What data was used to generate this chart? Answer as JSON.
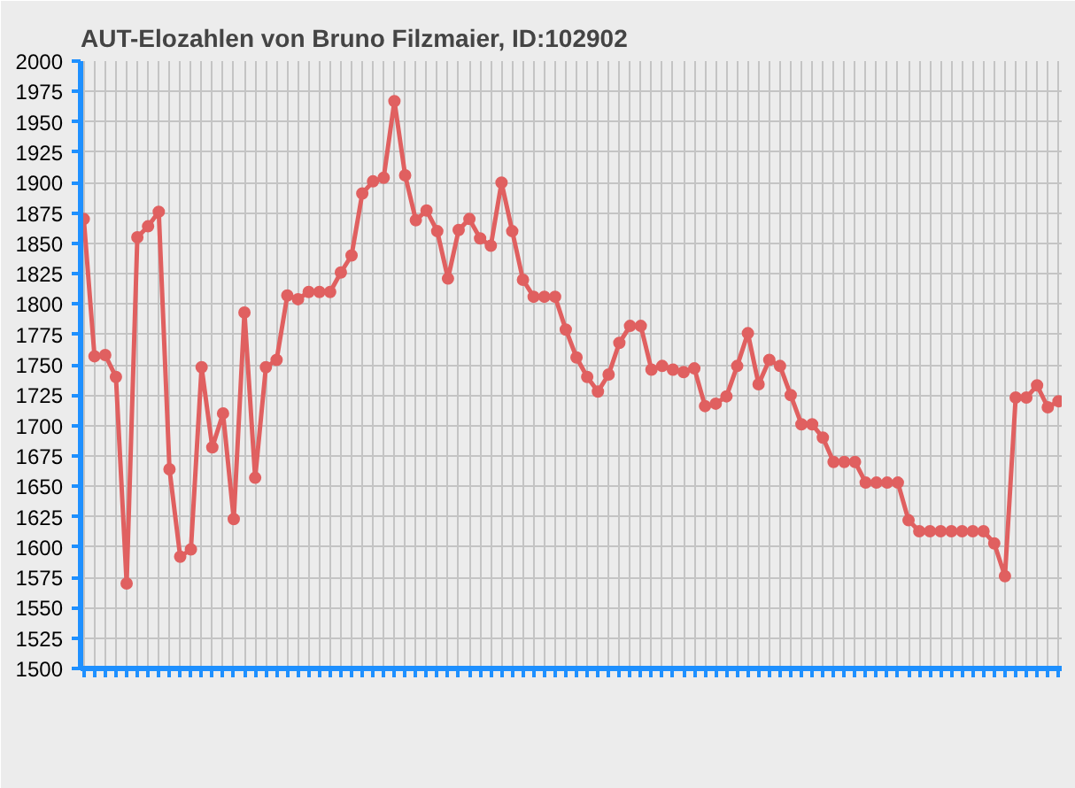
{
  "chart_data": {
    "type": "line",
    "title": "AUT-Elozahlen von Bruno Filzmaier, ID:102902",
    "categories": [
      null,
      null,
      null,
      null,
      null,
      null,
      null,
      null,
      null,
      null,
      null,
      null,
      null,
      null,
      null,
      null,
      null,
      null,
      null,
      null,
      null,
      null,
      null,
      null,
      null,
      null,
      null,
      null,
      null,
      null,
      null,
      null,
      null,
      null,
      null,
      null,
      null,
      null,
      null,
      null,
      null,
      null,
      null,
      null,
      null,
      null,
      null,
      null,
      null,
      null,
      null,
      null,
      null,
      null,
      null,
      null,
      null,
      null,
      null,
      null,
      null,
      null,
      null,
      null,
      null,
      null,
      null,
      null,
      null,
      null,
      null,
      null,
      null,
      null,
      null,
      null,
      null,
      null,
      null,
      null,
      null,
      null,
      null,
      null,
      null,
      null,
      null,
      null,
      null,
      null,
      null,
      null
    ],
    "series": [
      {
        "color": "#e06060",
        "values": [
          1870,
          1757,
          1758,
          1740,
          1570,
          1855,
          1864,
          1876,
          1664,
          1592,
          1598,
          1748,
          1682,
          1710,
          1623,
          1793,
          1657,
          1748,
          1754,
          1807,
          1804,
          1810,
          1810,
          1810,
          1826,
          1840,
          1891,
          1901,
          1904,
          1967,
          1906,
          1869,
          1877,
          1860,
          1821,
          1861,
          1870,
          1854,
          1848,
          1900,
          1860,
          1820,
          1806,
          1806,
          1806,
          1779,
          1756,
          1740,
          1728,
          1742,
          1768,
          1782,
          1782,
          1746,
          1749,
          1746,
          1744,
          1747,
          1716,
          1718,
          1724,
          1749,
          1776,
          1734,
          1754,
          1749,
          1725,
          1701,
          1701,
          1690,
          1670,
          1670,
          1670,
          1653,
          1653,
          1653,
          1653,
          1622,
          1613,
          1613,
          1613,
          1613,
          1613,
          1613,
          1613,
          1603,
          1576,
          1723,
          1723,
          1733,
          1715,
          1720
        ]
      }
    ],
    "ylim": [
      1500,
      2000
    ],
    "yticks": [
      1500,
      1525,
      1550,
      1575,
      1600,
      1625,
      1650,
      1675,
      1700,
      1725,
      1750,
      1775,
      1800,
      1825,
      1850,
      1875,
      1900,
      1925,
      1950,
      1975,
      2000
    ],
    "grid": true,
    "marker": "circle",
    "line_style": "solid",
    "tick_labels": "y"
  }
}
